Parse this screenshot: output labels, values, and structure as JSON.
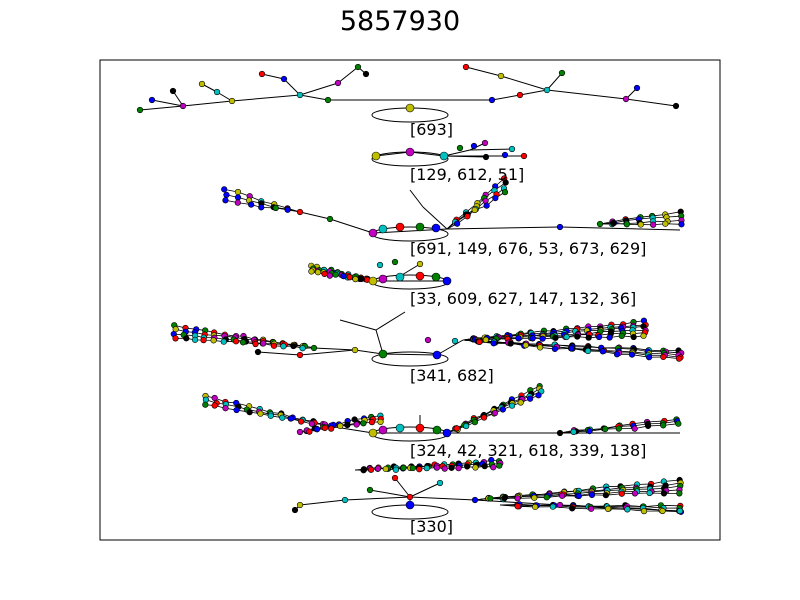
{
  "title": "5857930",
  "colors": {
    "r": "#ff0000",
    "b": "#0000ff",
    "g": "#008000",
    "y": "#bfbf00",
    "c": "#00bfbf",
    "m": "#bf00bf",
    "k": "#000000"
  },
  "rows": [
    {
      "label": "[693]"
    },
    {
      "label": "[129, 612, 51]"
    },
    {
      "label": "[691, 149, 676, 53, 673, 629]"
    },
    {
      "label": "[33, 609, 627, 147, 132, 36]"
    },
    {
      "label": "[341, 682]"
    },
    {
      "label": "[324, 42, 321, 618, 339, 138]"
    },
    {
      "label": "[330]"
    }
  ]
}
